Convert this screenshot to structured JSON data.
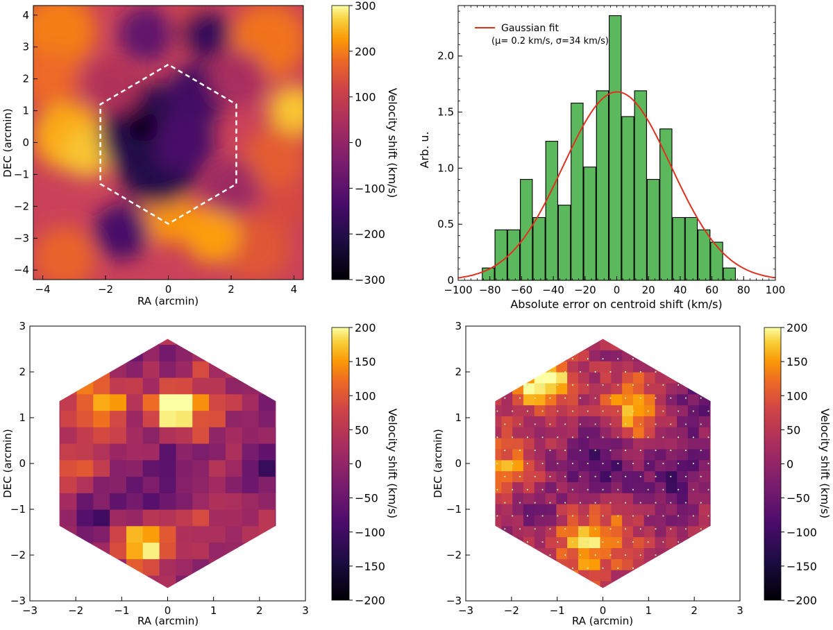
{
  "chart_data": [
    {
      "id": "map-top-left",
      "type": "heatmap",
      "xlabel": "RA (arcmin)",
      "ylabel": "DEC (arcmin)",
      "xlim": [
        -4.3,
        4.3
      ],
      "ylim": [
        -4.3,
        4.3
      ],
      "xticks": [
        -4,
        -2,
        0,
        2,
        4
      ],
      "yticks": [
        -4,
        -3,
        -2,
        -1,
        0,
        1,
        2,
        3,
        4
      ],
      "colorbar": {
        "label": "Velocity shift (km/s)",
        "range": [
          -300,
          300
        ],
        "ticks": [
          300,
          200,
          100,
          0,
          -100,
          -200,
          -300
        ]
      },
      "overlay": "dashed hexagon"
    },
    {
      "id": "histogram-top-right",
      "type": "bar",
      "xlabel": "Absolute error on centroid shift (km/s)",
      "ylabel": "Arb. u.",
      "xlim": [
        -100,
        100
      ],
      "ylim": [
        0,
        2.45
      ],
      "xticks": [
        -100,
        -80,
        -60,
        -40,
        -20,
        0,
        20,
        40,
        60,
        80,
        100
      ],
      "yticks": [
        0,
        0.5,
        1.0,
        1.5,
        2.0
      ],
      "bin_centers": [
        -81,
        -73,
        -65,
        -57,
        -49,
        -41,
        -33,
        -25,
        -17,
        -9,
        -1,
        7,
        15,
        23,
        31,
        39,
        47,
        55,
        63,
        71
      ],
      "values": [
        0.11,
        0.45,
        0.45,
        0.9,
        0.56,
        1.24,
        0.67,
        1.58,
        1.01,
        1.69,
        2.36,
        1.46,
        1.69,
        0.9,
        1.35,
        0.56,
        0.56,
        0.45,
        0.34,
        0.11
      ],
      "legend": {
        "label": "Gaussian fit",
        "sublabel": "(μ= 0.2 km/s, σ=34 km/s)",
        "position": "top-left"
      },
      "fit": {
        "mu": 0.2,
        "sigma": 34,
        "peak": 1.68
      }
    },
    {
      "id": "map-bottom-left",
      "type": "heatmap",
      "xlabel": "RA (arcmin)",
      "ylabel": "DEC (arcmin)",
      "xlim": [
        -3,
        3
      ],
      "ylim": [
        -3,
        3
      ],
      "xticks": [
        -3,
        -2,
        -1,
        0,
        1,
        2,
        3
      ],
      "yticks": [
        -3,
        -2,
        -1,
        0,
        1,
        2,
        3
      ],
      "colorbar": {
        "label": "Velocity shift (km/s)",
        "range": [
          -200,
          200
        ],
        "ticks": [
          200,
          150,
          100,
          50,
          0,
          -50,
          -100,
          -150,
          -200
        ]
      },
      "shape": "hexagon of binned cells"
    },
    {
      "id": "map-bottom-right",
      "type": "heatmap",
      "xlabel": "RA (arcmin)",
      "ylabel": "DEC (arcmin)",
      "xlim": [
        -3,
        3
      ],
      "ylim": [
        -3,
        3
      ],
      "xticks": [
        -3,
        -2,
        -1,
        0,
        1,
        2,
        3
      ],
      "yticks": [
        -3,
        -2,
        -1,
        0,
        1,
        2,
        3
      ],
      "colorbar": {
        "label": "Velocity shift (km/s)",
        "range": [
          -200,
          200
        ],
        "ticks": [
          200,
          150,
          100,
          50,
          0,
          -50,
          -100,
          -150,
          -200
        ]
      },
      "shape": "hexagon of binned cells with marker dots"
    }
  ]
}
